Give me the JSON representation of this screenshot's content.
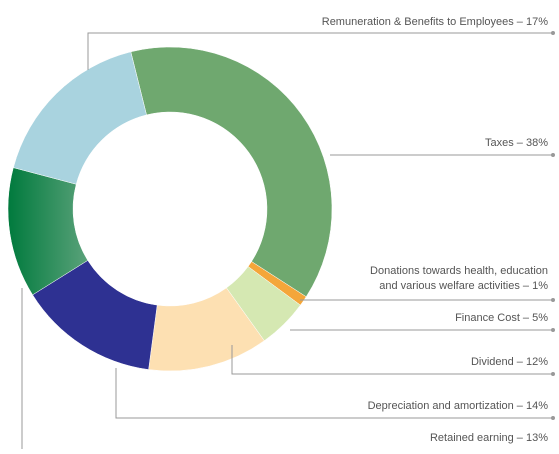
{
  "chart_data": {
    "type": "donut",
    "categories": [
      "Taxes",
      "Donations towards health, education and various welfare activities",
      "Finance Cost",
      "Dividend",
      "Depreciation and amortization",
      "Retained earning",
      "Remuneration & Benefits to Employees"
    ],
    "values": [
      38,
      1,
      5,
      12,
      14,
      13,
      17
    ],
    "labels": [
      [
        "Taxes – 38%"
      ],
      [
        "Donations towards health, education",
        "and various welfare activities – 1%"
      ],
      [
        "Finance Cost – 5%"
      ],
      [
        "Dividend – 12%"
      ],
      [
        "Depreciation and amortization – 14%"
      ],
      [
        "Retained earning – 13%"
      ],
      [
        "Remuneration & Benefits to Employees – 17%"
      ]
    ],
    "colors": [
      "#6fa86f",
      "#f4a63a",
      "#d5e8b2",
      "#fde0b2",
      "#2e3192",
      "#0a7a42",
      "#a9d3df"
    ]
  }
}
